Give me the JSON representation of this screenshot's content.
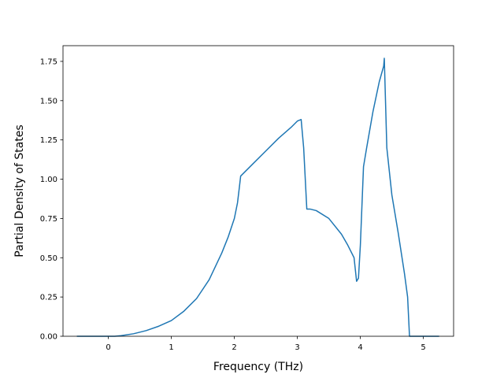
{
  "chart_data": {
    "type": "line",
    "title": "",
    "xlabel": "Frequency (THz)",
    "ylabel": "Partial Density of States",
    "xlim": [
      -0.72,
      5.48
    ],
    "ylim": [
      0.0,
      1.85
    ],
    "xticks": [
      0,
      1,
      2,
      3,
      4,
      5
    ],
    "xtick_labels": [
      "0",
      "1",
      "2",
      "3",
      "4",
      "5"
    ],
    "yticks": [
      0.0,
      0.25,
      0.5,
      0.75,
      1.0,
      1.25,
      1.5,
      1.75
    ],
    "ytick_labels": [
      "0.00",
      "0.25",
      "0.50",
      "0.75",
      "1.00",
      "1.25",
      "1.50",
      "1.75"
    ],
    "grid": false,
    "series": [
      {
        "color": "#1f77b4",
        "x": [
          -0.5,
          0.0,
          0.1,
          0.2,
          0.4,
          0.6,
          0.8,
          1.0,
          1.2,
          1.4,
          1.6,
          1.8,
          1.9,
          2.0,
          2.05,
          2.08,
          2.1,
          2.2,
          2.3,
          2.5,
          2.7,
          2.9,
          3.0,
          3.06,
          3.1,
          3.15,
          3.2,
          3.3,
          3.5,
          3.7,
          3.8,
          3.9,
          3.94,
          3.97,
          4.0,
          4.05,
          4.1,
          4.2,
          4.3,
          4.37,
          4.38,
          4.42,
          4.5,
          4.6,
          4.7,
          4.75,
          4.78,
          4.85,
          5.0,
          5.25
        ],
        "y": [
          0.0,
          0.0,
          0.0,
          0.004,
          0.016,
          0.036,
          0.064,
          0.1,
          0.16,
          0.24,
          0.36,
          0.53,
          0.63,
          0.75,
          0.85,
          0.95,
          1.02,
          1.06,
          1.1,
          1.18,
          1.26,
          1.33,
          1.37,
          1.38,
          1.2,
          0.81,
          0.81,
          0.8,
          0.75,
          0.65,
          0.58,
          0.5,
          0.35,
          0.37,
          0.58,
          1.08,
          1.2,
          1.43,
          1.62,
          1.72,
          1.77,
          1.2,
          0.9,
          0.66,
          0.4,
          0.25,
          0.0,
          0.0,
          0.0,
          0.0
        ]
      }
    ]
  }
}
